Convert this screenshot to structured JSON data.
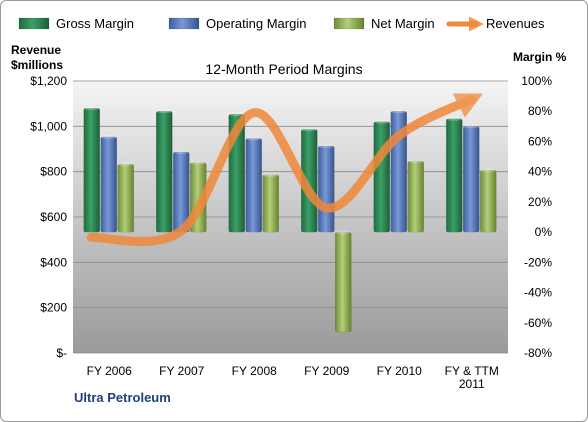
{
  "chart_data": {
    "type": "bar",
    "title": "12-Month Period Margins",
    "left_axis_title": [
      "Revenue",
      "$millions"
    ],
    "right_axis_title": "Margin %",
    "footer": "Ultra Petroleum",
    "categories": [
      [
        "FY 2006"
      ],
      [
        "FY 2007"
      ],
      [
        "FY 2008"
      ],
      [
        "FY 2009"
      ],
      [
        "FY 2010"
      ],
      [
        "FY & TTM",
        "2011"
      ]
    ],
    "revenue_axis": {
      "min": 0,
      "max": 1200,
      "step": 200,
      "tick_labels": [
        "$-",
        "$200",
        "$400",
        "$600",
        "$800",
        "$1,000",
        "$1,200"
      ]
    },
    "margin_axis": {
      "min": -80,
      "max": 100,
      "step": 20,
      "tick_labels": [
        "-80%",
        "-60%",
        "-40%",
        "-20%",
        "0%",
        "20%",
        "40%",
        "60%",
        "80%",
        "100%"
      ]
    },
    "series": [
      {
        "name": "Gross Margin",
        "axis": "margin",
        "color": "#2e8b57",
        "values": [
          82,
          80,
          78,
          68,
          73,
          75
        ]
      },
      {
        "name": "Operating Margin",
        "axis": "margin",
        "color": "#5b7fc4",
        "values": [
          63,
          53,
          62,
          57,
          80,
          70
        ]
      },
      {
        "name": "Net Margin",
        "axis": "margin",
        "color": "#9bbb59",
        "values": [
          45,
          46,
          38,
          -66,
          47,
          41
        ]
      },
      {
        "name": "Revenues",
        "axis": "revenue",
        "type": "line",
        "color": "#f0883a",
        "values": [
          510,
          540,
          1060,
          640,
          960,
          1120
        ]
      }
    ],
    "grid": true
  }
}
